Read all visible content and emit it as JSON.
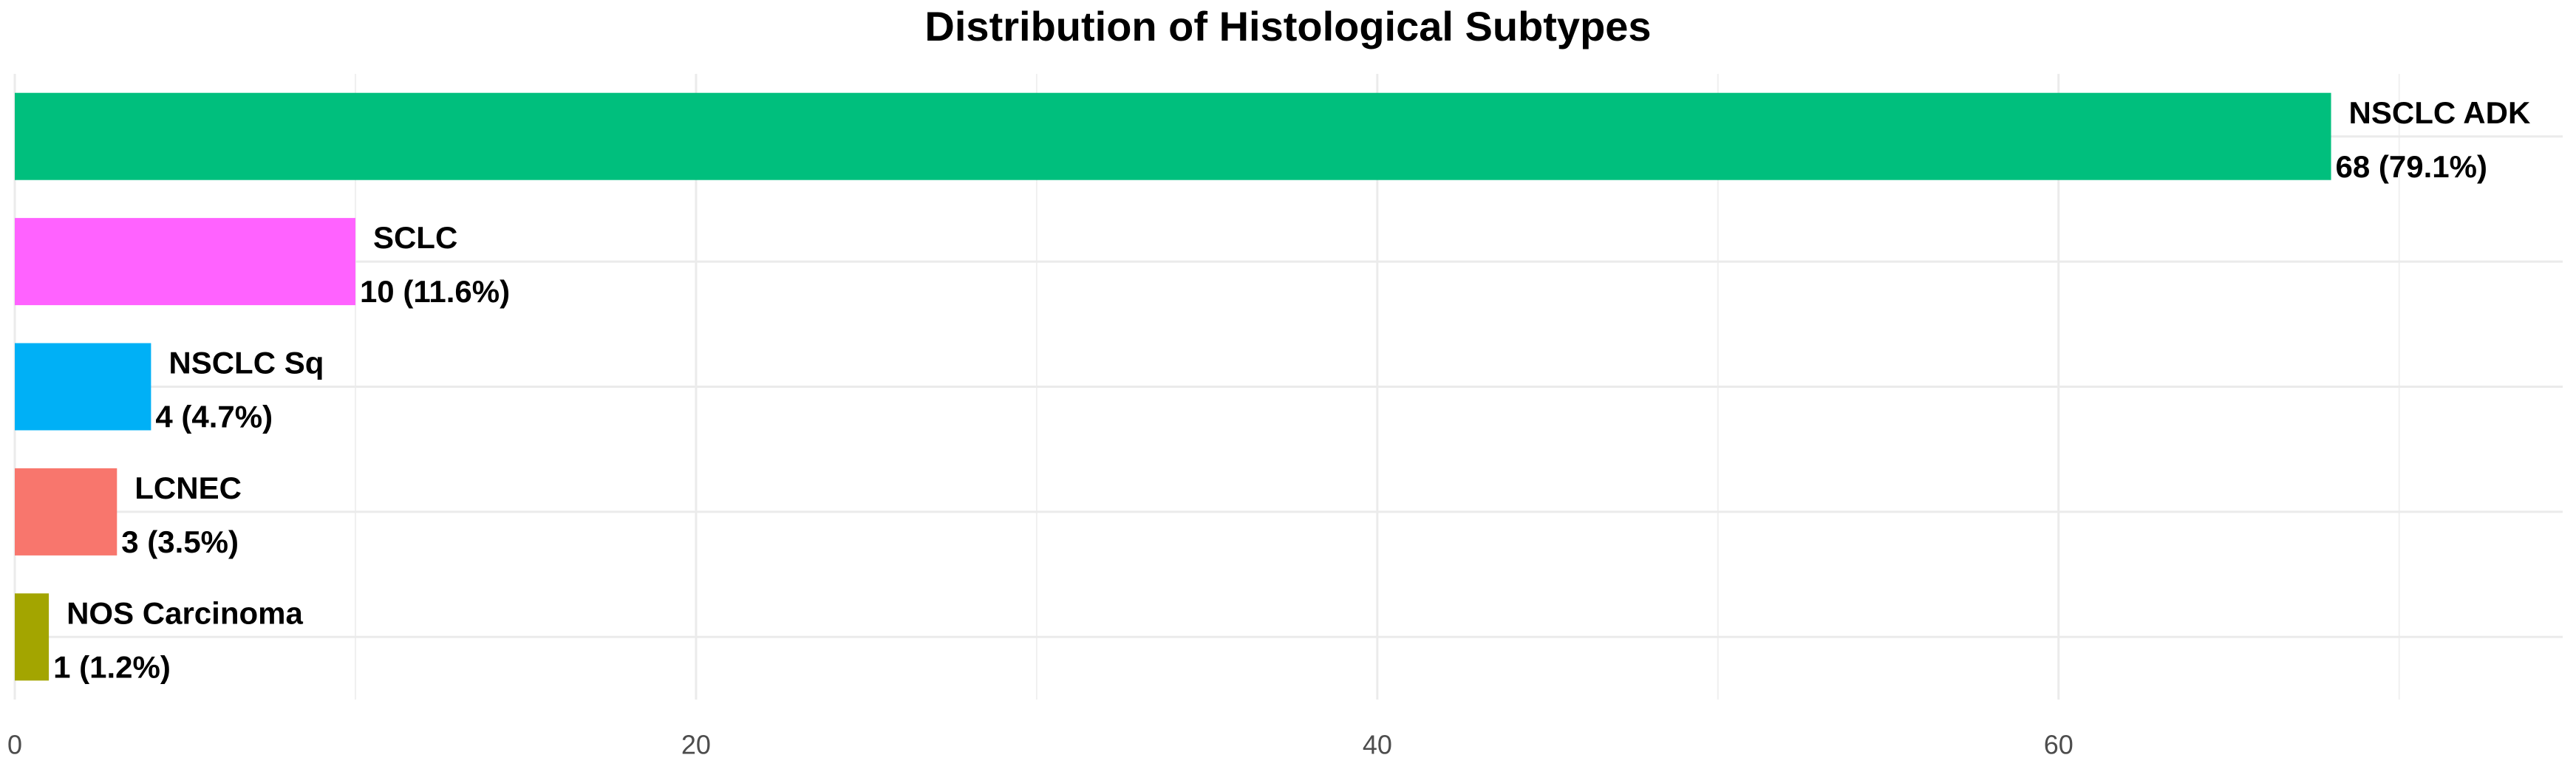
{
  "chart_data": {
    "type": "bar",
    "orientation": "horizontal",
    "title": "Distribution of Histological Subtypes",
    "categories": [
      "NSCLC ADK",
      "SCLC",
      "NSCLC Sq",
      "LCNEC",
      "NOS Carcinoma"
    ],
    "values": [
      68,
      10,
      4,
      3,
      1
    ],
    "value_labels": [
      "68 (79.1%)",
      "10 (11.6%)",
      "4 (4.7%)",
      "3 (3.5%)",
      "1 (1.2%)"
    ],
    "colors": [
      "#00BF7D",
      "#FF62FF",
      "#00B0F6",
      "#F8766D",
      "#A3A500"
    ],
    "xlim": [
      0,
      74.8
    ],
    "xticks": [
      0,
      20,
      40,
      60
    ],
    "xminor": [
      10,
      30,
      50,
      70
    ],
    "grid": true
  }
}
